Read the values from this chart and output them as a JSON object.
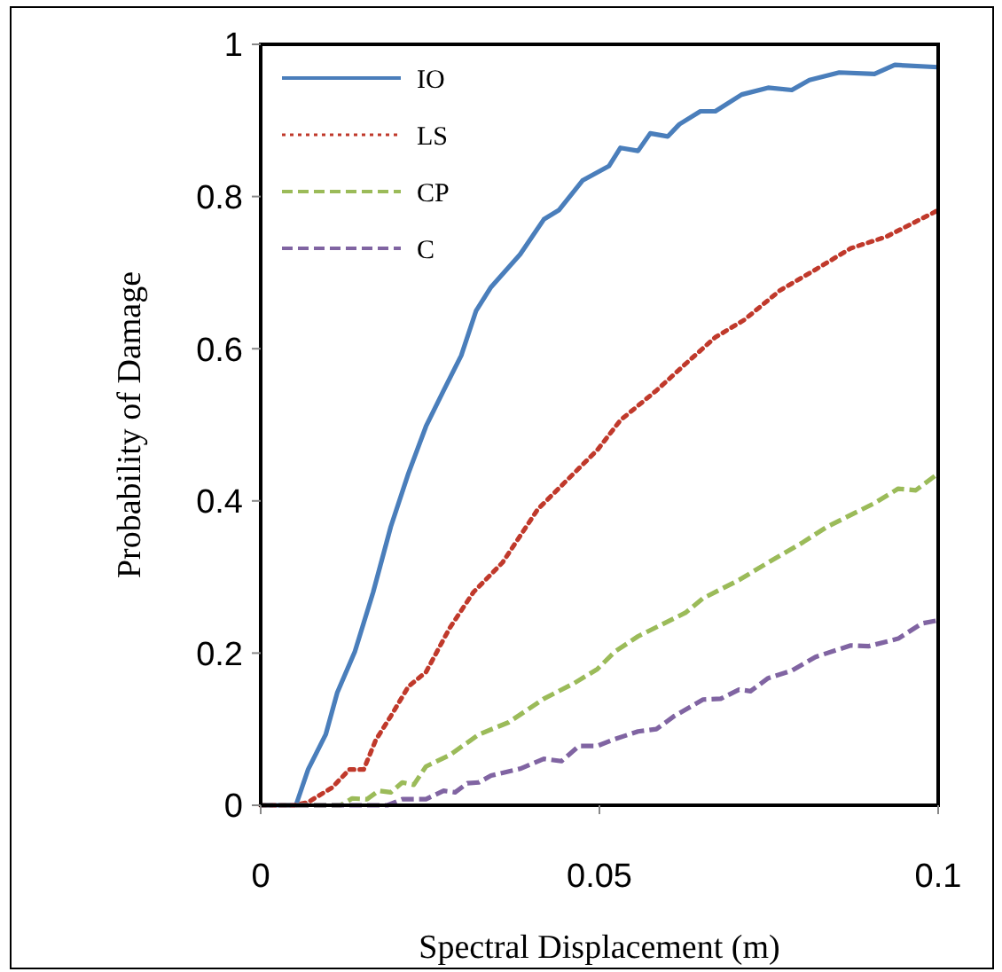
{
  "chart_data": {
    "type": "line",
    "xlabel": "Spectral Displacement (m)",
    "ylabel": "Probability of Damage",
    "xlim": [
      0,
      0.1
    ],
    "xticks": [
      0,
      0.05,
      0.1
    ],
    "ylim": [
      0,
      1
    ],
    "yticks": [
      0,
      0.2,
      0.4,
      0.6,
      0.8,
      1
    ],
    "legend": "top left",
    "grid": false,
    "series": [
      {
        "name": "IO",
        "color": "#4a7ebb",
        "line_style": "solid",
        "x": [
          0,
          0.0052,
          0.007,
          0.0096,
          0.0113,
          0.0139,
          0.0166,
          0.0192,
          0.0218,
          0.0244,
          0.027,
          0.0296,
          0.0318,
          0.034,
          0.0383,
          0.0418,
          0.044,
          0.0475,
          0.0514,
          0.0531,
          0.0557,
          0.0575,
          0.0601,
          0.0618,
          0.0649,
          0.0671,
          0.071,
          0.0749,
          0.0784,
          0.081,
          0.0854,
          0.0906,
          0.0936,
          0.1
        ],
        "values": [
          0,
          0,
          0.047,
          0.093,
          0.148,
          0.202,
          0.28,
          0.366,
          0.436,
          0.498,
          0.545,
          0.591,
          0.65,
          0.681,
          0.724,
          0.77,
          0.782,
          0.821,
          0.84,
          0.864,
          0.86,
          0.883,
          0.879,
          0.895,
          0.912,
          0.912,
          0.934,
          0.943,
          0.94,
          0.953,
          0.963,
          0.961,
          0.973,
          0.97
        ]
      },
      {
        "name": "LS",
        "color": "#c0392b",
        "line_style": "dotted",
        "x": [
          0,
          0.005,
          0.007,
          0.0105,
          0.0131,
          0.0152,
          0.017,
          0.0192,
          0.0218,
          0.0244,
          0.0279,
          0.0314,
          0.0357,
          0.0409,
          0.0453,
          0.0497,
          0.0531,
          0.0584,
          0.0627,
          0.0671,
          0.0714,
          0.0767,
          0.0819,
          0.0871,
          0.0923,
          0.1
        ],
        "values": [
          0,
          0,
          0.004,
          0.023,
          0.047,
          0.047,
          0.086,
          0.117,
          0.156,
          0.175,
          0.233,
          0.28,
          0.319,
          0.389,
          0.428,
          0.467,
          0.506,
          0.545,
          0.58,
          0.615,
          0.638,
          0.677,
          0.704,
          0.732,
          0.747,
          0.782
        ]
      },
      {
        "name": "CP",
        "color": "#9bbb59",
        "line_style": "dashed",
        "x": [
          0,
          0.0118,
          0.0135,
          0.0157,
          0.0174,
          0.0192,
          0.0209,
          0.0226,
          0.0244,
          0.0279,
          0.0322,
          0.0366,
          0.0418,
          0.0462,
          0.0497,
          0.0523,
          0.0557,
          0.0627,
          0.0653,
          0.0706,
          0.0749,
          0.0801,
          0.0836,
          0.0906,
          0.0941,
          0.0967,
          0.1
        ],
        "values": [
          0,
          0,
          0.009,
          0.008,
          0.019,
          0.017,
          0.03,
          0.027,
          0.051,
          0.066,
          0.093,
          0.109,
          0.14,
          0.16,
          0.179,
          0.202,
          0.222,
          0.253,
          0.272,
          0.296,
          0.319,
          0.346,
          0.366,
          0.397,
          0.416,
          0.414,
          0.436
        ]
      },
      {
        "name": "C",
        "color": "#8064a2",
        "line_style": "dashed",
        "x": [
          0,
          0.0187,
          0.0209,
          0.0244,
          0.027,
          0.0287,
          0.0305,
          0.0322,
          0.034,
          0.0383,
          0.0418,
          0.0444,
          0.047,
          0.0497,
          0.0523,
          0.0557,
          0.0584,
          0.061,
          0.0653,
          0.0679,
          0.0706,
          0.0723,
          0.0749,
          0.0784,
          0.0819,
          0.0871,
          0.0897,
          0.0941,
          0.0976,
          0.1
        ],
        "values": [
          0,
          0,
          0.008,
          0.008,
          0.019,
          0.017,
          0.029,
          0.03,
          0.039,
          0.048,
          0.061,
          0.058,
          0.078,
          0.078,
          0.087,
          0.097,
          0.1,
          0.117,
          0.139,
          0.14,
          0.152,
          0.15,
          0.167,
          0.177,
          0.195,
          0.21,
          0.209,
          0.219,
          0.239,
          0.243
        ]
      }
    ]
  }
}
